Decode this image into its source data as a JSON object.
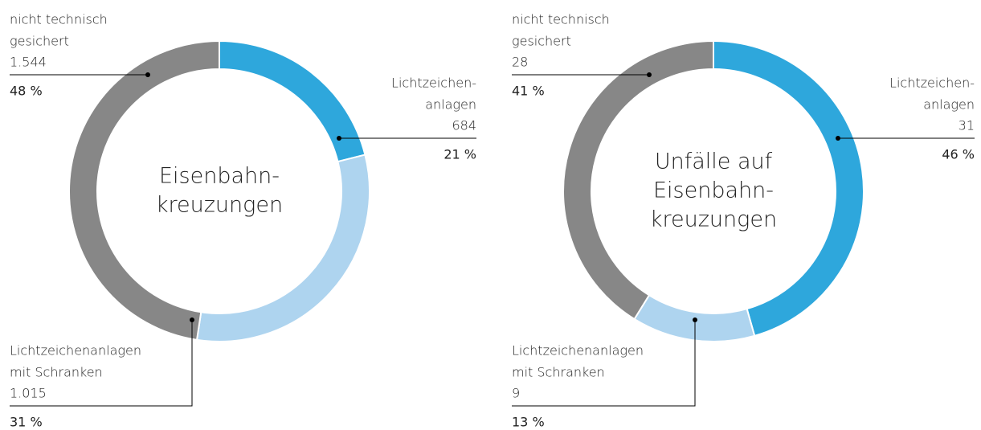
{
  "chart_data": [
    {
      "type": "donut",
      "center_label": [
        "Eisenbahn-",
        "kreuzungen"
      ],
      "categories": [
        [
          "Lichtzeichen-",
          "anlagen"
        ],
        [
          "Lichtzeichenanlagen",
          "mit Schranken"
        ],
        [
          "nicht technisch",
          "gesichert"
        ]
      ],
      "values": [
        684,
        1015,
        1544
      ],
      "value_labels": [
        "684",
        "1.015",
        "1.544"
      ],
      "percent_values": [
        21,
        31,
        48
      ],
      "percent_labels": [
        "21 %",
        "31 %",
        "48 %"
      ],
      "colors": [
        "#2ea7dc",
        "#aed4ef",
        "#878787"
      ]
    },
    {
      "type": "donut",
      "center_label": [
        "Unfälle auf",
        "Eisenbahn-",
        "kreuzungen"
      ],
      "categories": [
        [
          "Lichtzeichen-",
          "anlagen"
        ],
        [
          "Lichtzeichenanlagen",
          "mit Schranken"
        ],
        [
          "nicht technisch",
          "gesichert"
        ]
      ],
      "values": [
        31,
        9,
        28
      ],
      "value_labels": [
        "31",
        "9",
        "28"
      ],
      "percent_values": [
        46,
        13,
        41
      ],
      "percent_labels": [
        "46 %",
        "13 %",
        "41 %"
      ],
      "colors": [
        "#2ea7dc",
        "#aed4ef",
        "#878787"
      ]
    }
  ]
}
